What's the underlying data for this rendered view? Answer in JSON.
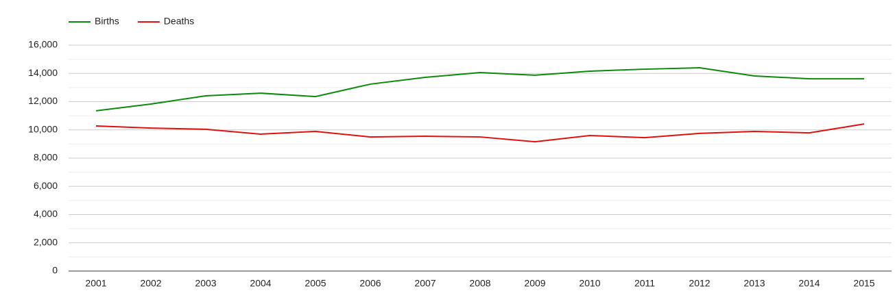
{
  "chart_data": {
    "type": "line",
    "categories": [
      "2001",
      "2002",
      "2003",
      "2004",
      "2005",
      "2006",
      "2007",
      "2008",
      "2009",
      "2010",
      "2011",
      "2012",
      "2013",
      "2014",
      "2015"
    ],
    "series": [
      {
        "name": "Births",
        "color": "#0a8a0a",
        "values": [
          11350,
          11830,
          12410,
          12600,
          12360,
          13240,
          13720,
          14060,
          13870,
          14160,
          14300,
          14400,
          13820,
          13620,
          13620
        ]
      },
      {
        "name": "Deaths",
        "color": "#e01010",
        "values": [
          10280,
          10130,
          10040,
          9700,
          9890,
          9500,
          9550,
          9500,
          9160,
          9600,
          9450,
          9750,
          9890,
          9790,
          10420
        ]
      }
    ],
    "ylim": [
      0,
      16000
    ],
    "yticks": [
      0,
      {
        "value": 2000,
        "label": "2,000"
      },
      {
        "value": 4000,
        "label": "4,000"
      },
      {
        "value": 6000,
        "label": "6,000"
      },
      {
        "value": 8000,
        "label": "8,000"
      },
      {
        "value": 10000,
        "label": "10,000"
      },
      {
        "value": 12000,
        "label": "12,000"
      },
      {
        "value": 14000,
        "label": "14,000"
      },
      {
        "value": 16000,
        "label": "16,000"
      }
    ],
    "grid": true,
    "minor_grid": true,
    "legend": "top-left"
  }
}
